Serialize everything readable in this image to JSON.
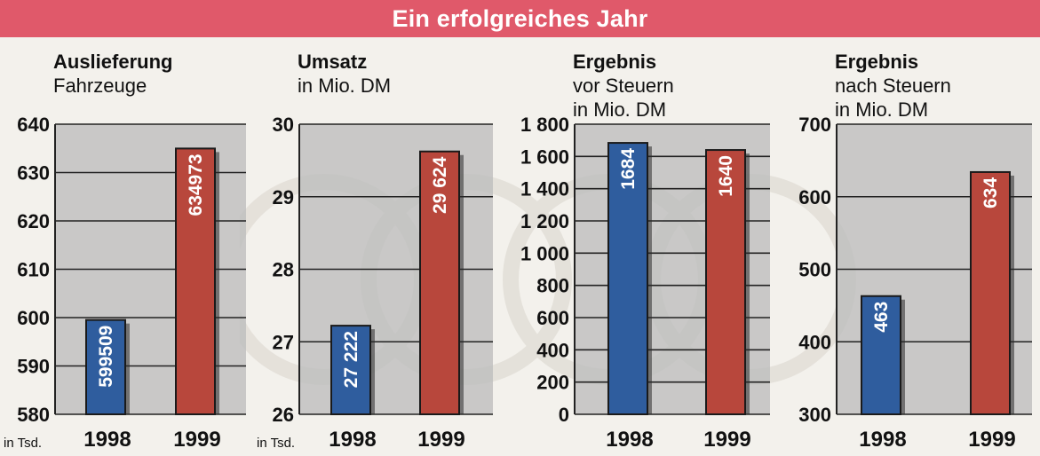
{
  "header": {
    "title": "Ein erfolgreiches Jahr"
  },
  "colors": {
    "banner": "#e0596a",
    "bar_1998": "#2f5d9e",
    "bar_1999": "#b8473c",
    "plot_bg": "#bdbdbd",
    "background": "#f3f1ec"
  },
  "chart_data": [
    {
      "type": "bar",
      "title_bold": "Auslieferung",
      "title_rest": [
        "Fahrzeuge"
      ],
      "unit": "in Tsd.",
      "categories": [
        "1998",
        "1999"
      ],
      "values": [
        599.509,
        634.973
      ],
      "value_labels": [
        "599509",
        "634973"
      ],
      "ylim": [
        580,
        640
      ],
      "yticks": [
        "580",
        "590",
        "600",
        "610",
        "620",
        "630",
        "640"
      ],
      "ytick_values": [
        580,
        590,
        600,
        610,
        620,
        630,
        640
      ]
    },
    {
      "type": "bar",
      "title_bold": "Umsatz",
      "title_rest": [
        "in Mio. DM"
      ],
      "unit": "in Tsd.",
      "categories": [
        "1998",
        "1999"
      ],
      "values": [
        27.222,
        29.624
      ],
      "value_labels": [
        "27 222",
        "29 624"
      ],
      "ylim": [
        26,
        30
      ],
      "yticks": [
        "26",
        "27",
        "28",
        "29",
        "30"
      ],
      "ytick_values": [
        26,
        27,
        28,
        29,
        30
      ]
    },
    {
      "type": "bar",
      "title_bold": "Ergebnis",
      "title_rest": [
        "vor Steuern",
        "in Mio. DM"
      ],
      "unit": "",
      "categories": [
        "1998",
        "1999"
      ],
      "values": [
        1684,
        1640
      ],
      "value_labels": [
        "1684",
        "1640"
      ],
      "ylim": [
        0,
        1800
      ],
      "yticks": [
        "0",
        "200",
        "400",
        "600",
        "800",
        "1 000",
        "1 200",
        "1 400",
        "1 600",
        "1 800"
      ],
      "ytick_values": [
        0,
        200,
        400,
        600,
        800,
        1000,
        1200,
        1400,
        1600,
        1800
      ]
    },
    {
      "type": "bar",
      "title_bold": "Ergebnis",
      "title_rest": [
        "nach Steuern",
        "in Mio. DM"
      ],
      "unit": "",
      "categories": [
        "1998",
        "1999"
      ],
      "values": [
        463,
        634
      ],
      "value_labels": [
        "463",
        "634"
      ],
      "ylim": [
        300,
        700
      ],
      "yticks": [
        "300",
        "400",
        "500",
        "600",
        "700"
      ],
      "ytick_values": [
        300,
        400,
        500,
        600,
        700
      ]
    }
  ]
}
